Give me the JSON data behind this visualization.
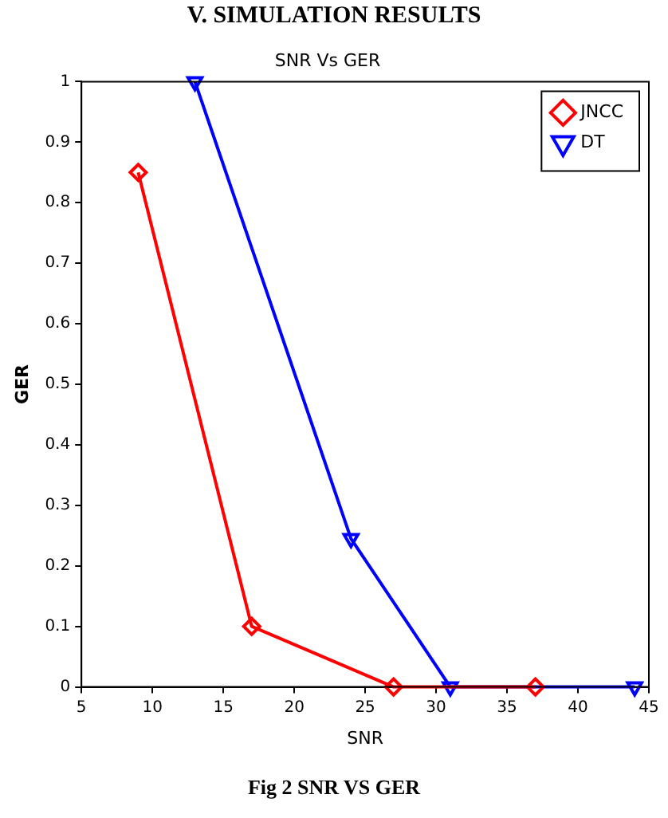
{
  "chart_data": {
    "type": "line",
    "title": "SNR Vs GER",
    "xlabel": "SNR",
    "ylabel": "GER",
    "annotations": [
      "V. SIMULATION RESULTS",
      "Fig 2 SNR VS GER"
    ],
    "series": [
      {
        "name": "JNCC",
        "color": "#ff0000",
        "marker": "diamond",
        "x": [
          9,
          17,
          27,
          37
        ],
        "values": [
          0.85,
          0.1,
          0,
          0
        ]
      },
      {
        "name": "DT",
        "color": "#0000ff",
        "marker": "triangle",
        "x": [
          13,
          24,
          31,
          44
        ],
        "values": [
          1,
          0.245,
          0,
          0
        ]
      }
    ],
    "xlim": [
      5,
      45
    ],
    "xticks": [
      5,
      10,
      15,
      20,
      25,
      30,
      35,
      40,
      45
    ],
    "ylim": [
      0,
      1
    ],
    "yticks": [
      0,
      0.1,
      0.2,
      0.3,
      0.4,
      0.5,
      0.6,
      0.7,
      0.8,
      0.9,
      1
    ],
    "grid": false,
    "legend": "top right",
    "line_style": "solid"
  }
}
